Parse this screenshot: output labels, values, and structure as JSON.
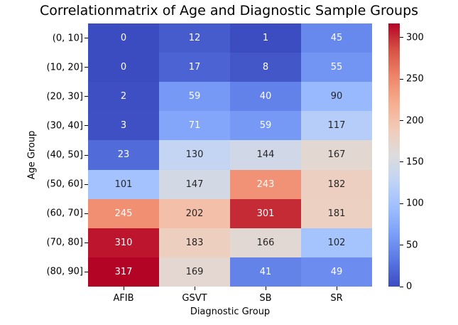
{
  "chart_data": {
    "type": "heatmap",
    "title": "Correlationmatrix of Age and Diagnostic Sample Groups",
    "xlabel": "Diagnostic Group",
    "ylabel": "Age Group",
    "x_categories": [
      "AFIB",
      "GSVT",
      "SB",
      "SR"
    ],
    "y_categories": [
      "(0, 10]",
      "(10, 20]",
      "(20, 30]",
      "(30, 40]",
      "(40, 50]",
      "(50, 60]",
      "(60, 70]",
      "(70, 80]",
      "(80, 90]"
    ],
    "values": [
      [
        0,
        12,
        1,
        45
      ],
      [
        0,
        17,
        8,
        55
      ],
      [
        2,
        59,
        40,
        90
      ],
      [
        3,
        71,
        59,
        117
      ],
      [
        23,
        130,
        144,
        167
      ],
      [
        101,
        147,
        243,
        182
      ],
      [
        245,
        202,
        301,
        181
      ],
      [
        310,
        183,
        166,
        102
      ],
      [
        317,
        169,
        41,
        49
      ]
    ],
    "colormap": "coolwarm",
    "vmin": 0,
    "vmax": 317,
    "colorbar_ticks": [
      0,
      50,
      100,
      150,
      200,
      250,
      300
    ],
    "legend_position": "right",
    "grid": false,
    "colors": {
      "low": "#3b4cc0",
      "mid": "#dddcdc",
      "high": "#b40426",
      "annot_dark": "#262626",
      "annot_light": "#ffffff",
      "background": "#ffffff"
    }
  }
}
